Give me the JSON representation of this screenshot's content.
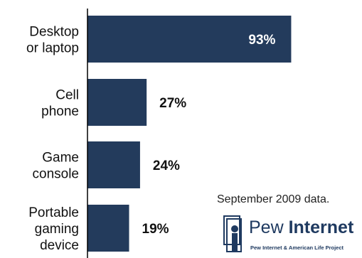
{
  "chart_data": {
    "type": "bar",
    "orientation": "horizontal",
    "categories": [
      [
        "Desktop",
        "or laptop"
      ],
      [
        "Cell",
        "phone"
      ],
      [
        "Game",
        "console"
      ],
      [
        "Portable",
        "gaming",
        "device"
      ]
    ],
    "values": [
      93,
      27,
      24,
      19
    ],
    "value_labels": [
      "93%",
      "27%",
      "24%",
      "19%"
    ],
    "xlim": [
      0,
      100
    ],
    "grid": false,
    "bar_color": "#233b5c"
  },
  "note": "September 2009 data.",
  "logo": {
    "word1": "Pew",
    "word2": "Internet",
    "subtitle": "Pew Internet & American Life Project",
    "color": "#1f3a60"
  }
}
